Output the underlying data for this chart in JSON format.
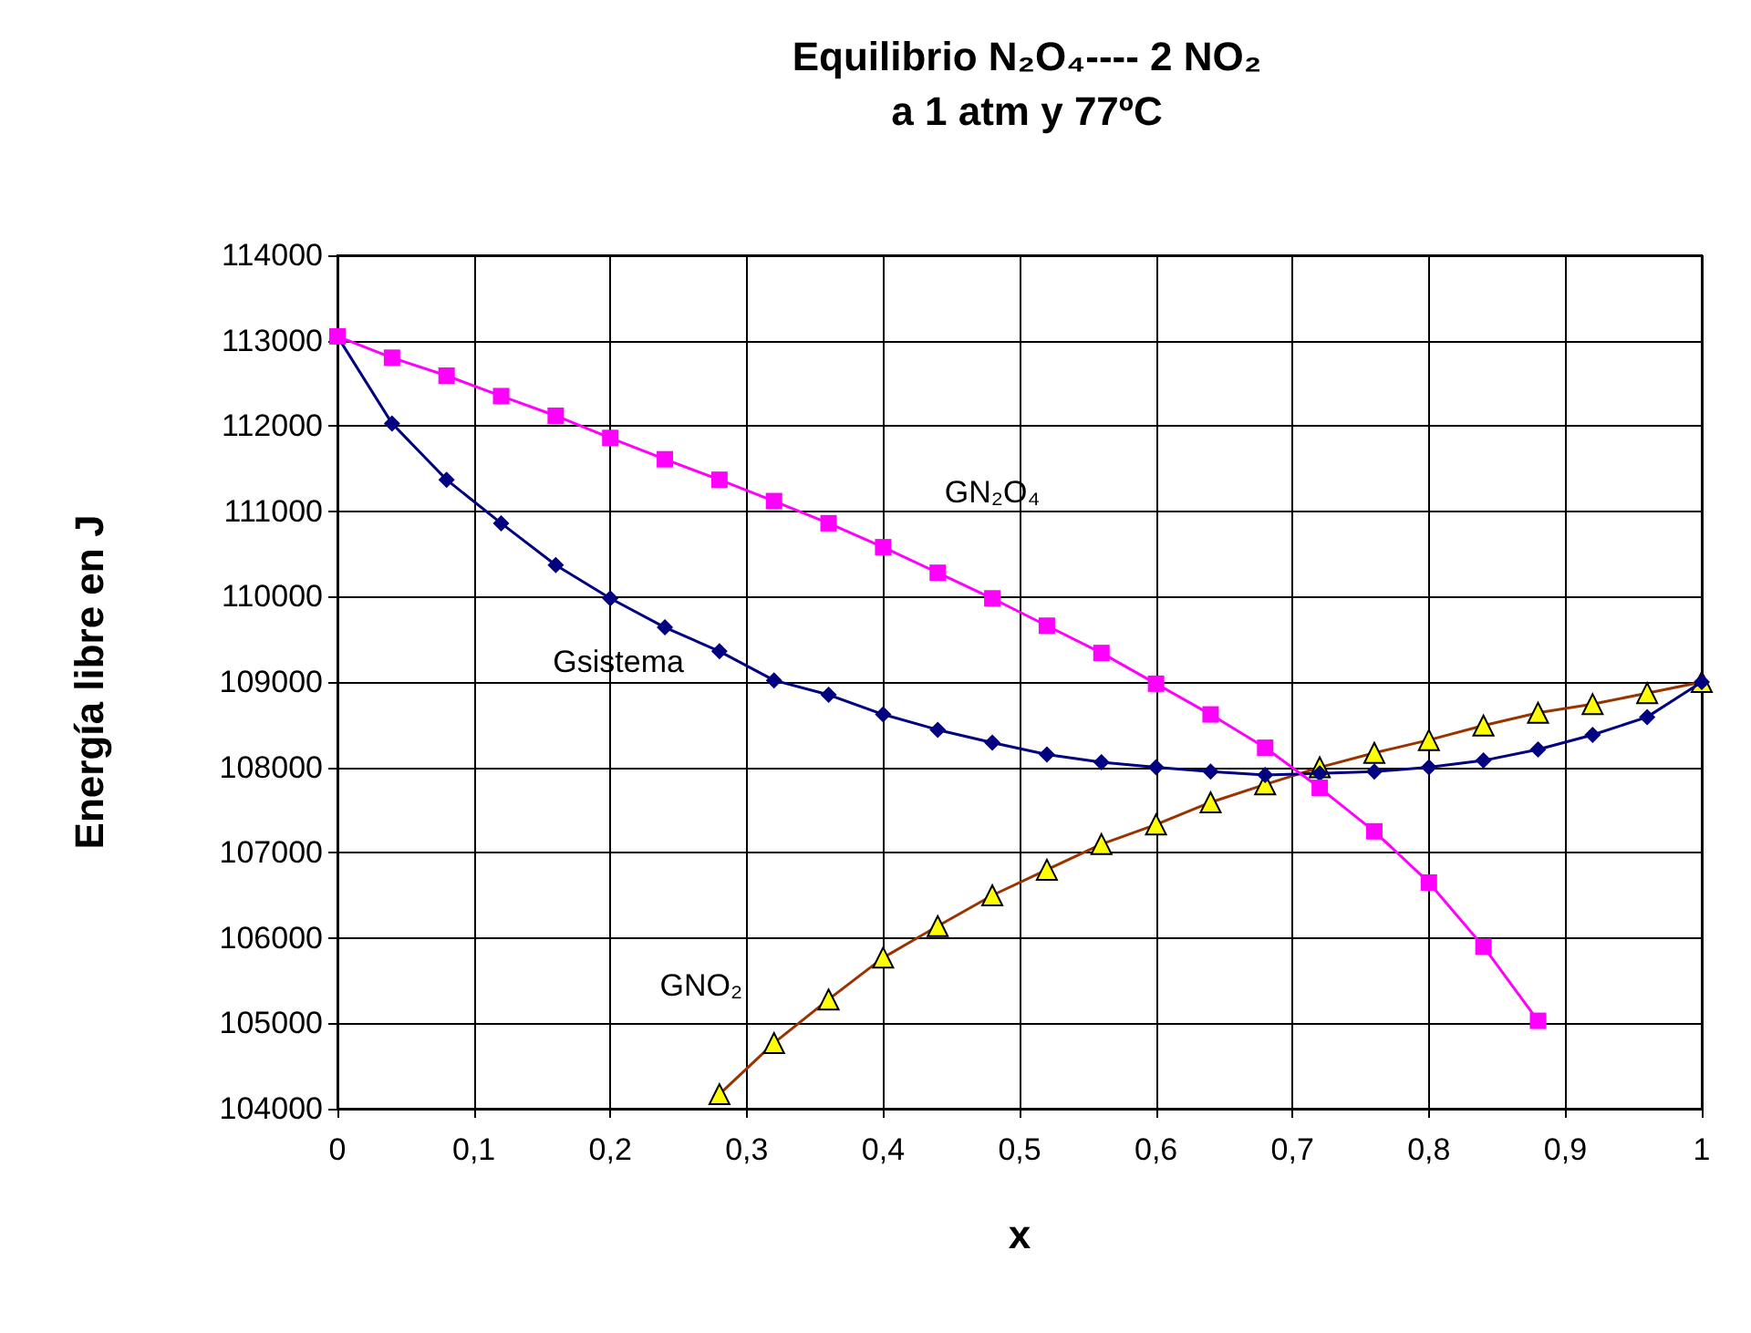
{
  "chart_data": {
    "type": "line",
    "title": "Equilibrio N₂O₄---- 2 NO₂",
    "subtitle": "a 1 atm y 77ºC",
    "xlabel": "x",
    "ylabel": "Energía libre en J",
    "xlim": [
      0,
      1
    ],
    "xticks": [
      0,
      {
        "value": 0.1,
        "label": "0,1"
      },
      {
        "value": 0.2,
        "label": "0,2"
      },
      {
        "value": 0.3,
        "label": "0,3"
      },
      {
        "value": 0.4,
        "label": "0,4"
      },
      {
        "value": 0.5,
        "label": "0,5"
      },
      {
        "value": 0.6,
        "label": "0,6"
      },
      {
        "value": 0.7,
        "label": "0,7"
      },
      {
        "value": 0.8,
        "label": "0,8"
      },
      {
        "value": 0.9,
        "label": "0,9"
      },
      1
    ],
    "ylim": [
      104000,
      114000
    ],
    "yticks": [
      104000,
      105000,
      106000,
      107000,
      108000,
      109000,
      110000,
      111000,
      112000,
      113000,
      114000
    ],
    "grid": true,
    "legend": false,
    "series": [
      {
        "name": "GN₂O₄",
        "color": "#ff00ff",
        "marker": "square",
        "x": [
          0,
          0.04,
          0.08,
          0.12,
          0.16,
          0.2,
          0.24,
          0.28,
          0.32,
          0.36,
          0.4,
          0.44,
          0.48,
          0.52,
          0.56,
          0.6,
          0.64,
          0.68,
          0.72,
          0.76,
          0.8,
          0.84,
          0.88
        ],
        "values": [
          113050,
          112800,
          112590,
          112350,
          112120,
          111860,
          111610,
          111370,
          111120,
          110860,
          110580,
          110280,
          109980,
          109660,
          109340,
          108980,
          108620,
          108230,
          107760,
          107250,
          106650,
          105900,
          105030
        ]
      },
      {
        "name": "Gsistema",
        "color": "#000080",
        "marker": "diamond",
        "x": [
          0,
          0.04,
          0.08,
          0.12,
          0.16,
          0.2,
          0.24,
          0.28,
          0.32,
          0.36,
          0.4,
          0.44,
          0.48,
          0.52,
          0.56,
          0.6,
          0.64,
          0.68,
          0.72,
          0.76,
          0.8,
          0.84,
          0.88,
          0.92,
          0.96,
          1
        ],
        "values": [
          113050,
          112030,
          111370,
          110860,
          110370,
          109980,
          109640,
          109360,
          109020,
          108850,
          108620,
          108440,
          108290,
          108150,
          108060,
          108000,
          107950,
          107910,
          107930,
          107950,
          108000,
          108080,
          108210,
          108380,
          108590,
          109000
        ]
      },
      {
        "name": "GNO₂",
        "color": "#993300",
        "marker": "triangle",
        "x": [
          0.28,
          0.32,
          0.36,
          0.4,
          0.44,
          0.48,
          0.52,
          0.56,
          0.6,
          0.64,
          0.68,
          0.72,
          0.76,
          0.8,
          0.84,
          0.88,
          0.92,
          0.96,
          1
        ],
        "values": [
          104170,
          104770,
          105280,
          105770,
          106140,
          106500,
          106800,
          107100,
          107330,
          107590,
          107800,
          108000,
          108170,
          108320,
          108490,
          108640,
          108740,
          108870,
          109000
        ]
      }
    ]
  }
}
